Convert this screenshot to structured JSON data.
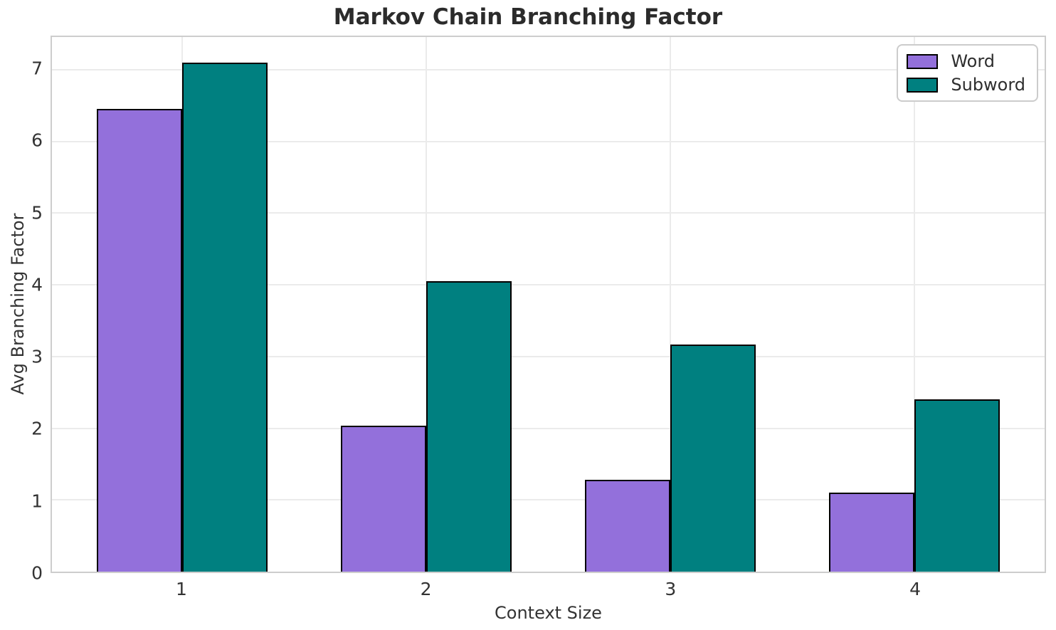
{
  "chart_data": {
    "type": "bar",
    "title": "Markov Chain Branching Factor",
    "xlabel": "Context Size",
    "ylabel": "Avg Branching Factor",
    "categories": [
      "1",
      "2",
      "3",
      "4"
    ],
    "x_positions": [
      1,
      2,
      3,
      4
    ],
    "series": [
      {
        "name": "Word",
        "color": "#9370DB",
        "values": [
          6.45,
          2.04,
          1.28,
          1.1
        ]
      },
      {
        "name": "Subword",
        "color": "#008080",
        "values": [
          7.1,
          4.05,
          3.17,
          2.4
        ]
      }
    ],
    "bar_width": 0.35,
    "edge_color": "#000000",
    "xlim": [
      0.465,
      4.535
    ],
    "ylim": [
      0,
      7.455
    ],
    "yticks": [
      0,
      1,
      2,
      3,
      4,
      5,
      6,
      7
    ],
    "grid": true,
    "grid_color": "#ebebeb",
    "legend_position": "upper right"
  }
}
